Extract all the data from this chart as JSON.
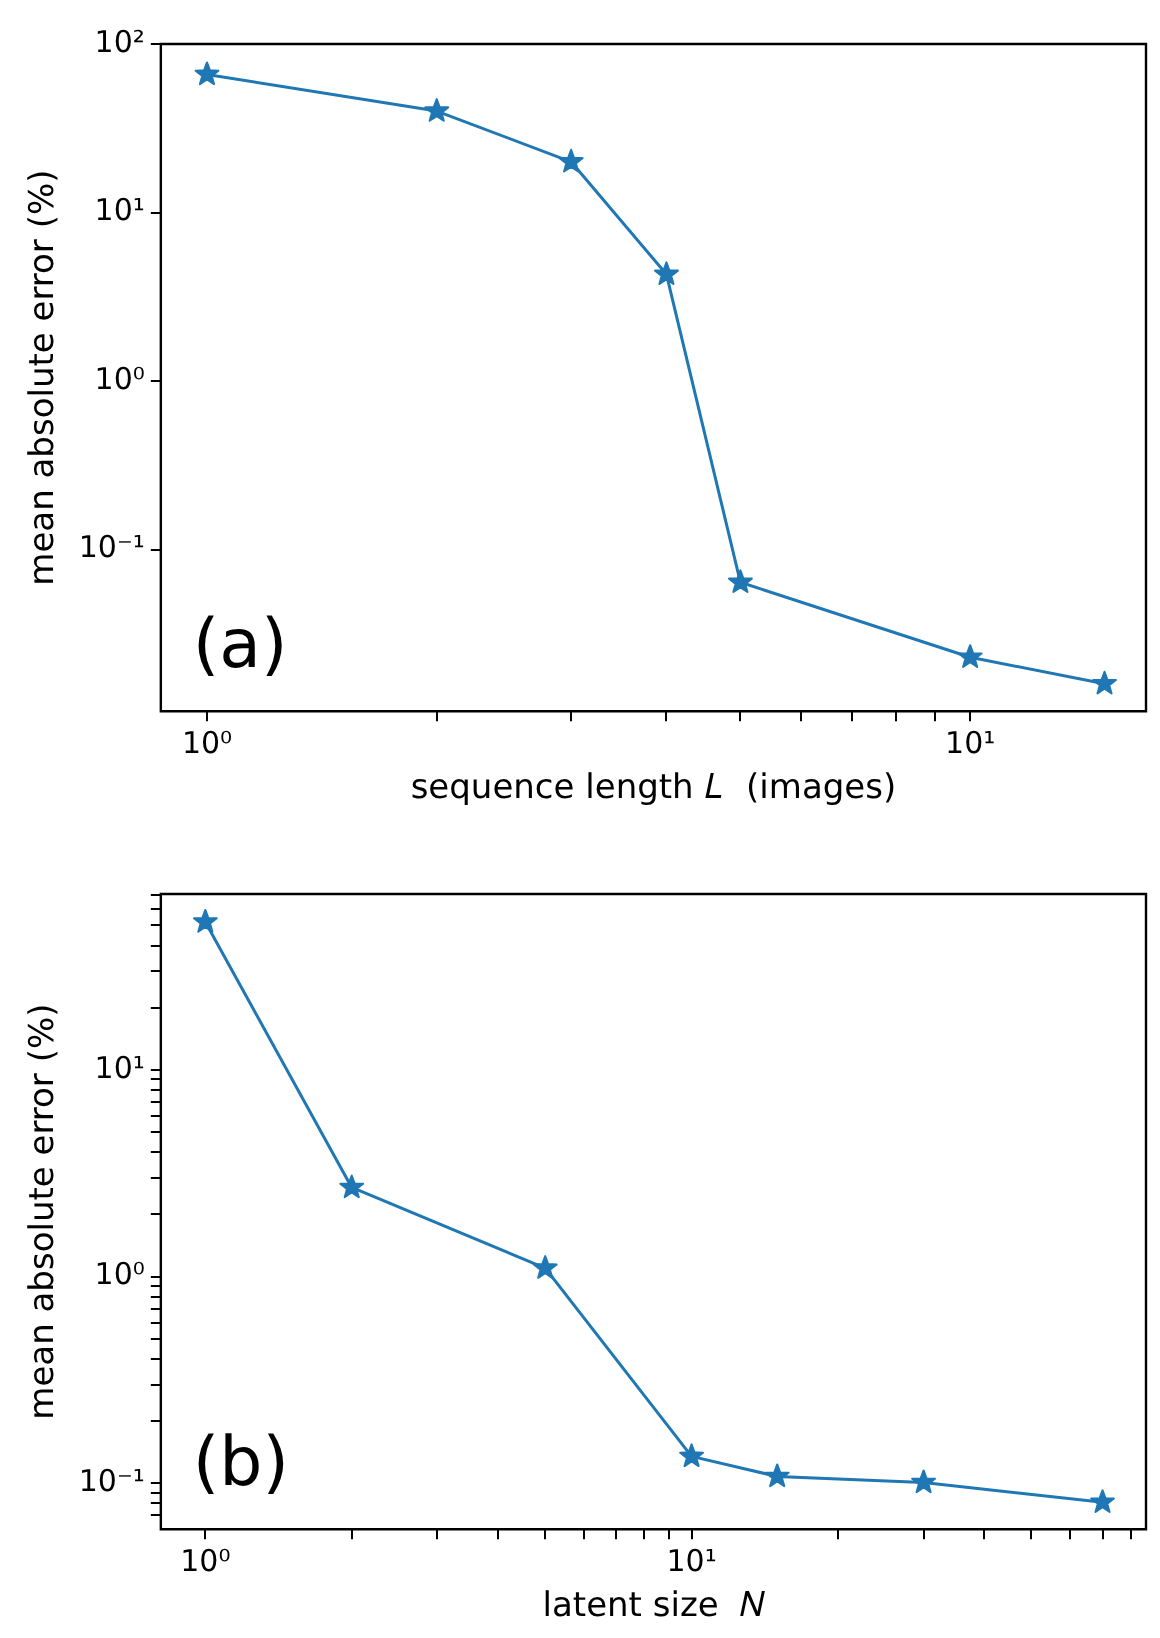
{
  "chart_data": [
    {
      "type": "line",
      "xlabel": "sequence length 𝐿  (images)",
      "ylabel": "mean absolute error (%)",
      "annotations": [
        "(a)"
      ],
      "x": [
        1,
        2,
        3,
        4,
        5,
        10,
        15
      ],
      "series": [
        {
          "color": "#1f77b4",
          "values": [
            66,
            40,
            20,
            4.3,
            0.064,
            0.023,
            0.016
          ]
        }
      ],
      "log": "xy",
      "grid": false,
      "legend": false,
      "marker": "star",
      "line_style": "solid",
      "xlim": [
        0.87,
        17
      ],
      "ylim": [
        0.011,
        100
      ],
      "xticks": [
        {
          "value": 1,
          "label": "10⁰"
        },
        {
          "value": 2,
          "label": null
        },
        {
          "value": 3,
          "label": null
        },
        {
          "value": 4,
          "label": null
        },
        {
          "value": 5,
          "label": null
        },
        {
          "value": 6,
          "label": null
        },
        {
          "value": 7,
          "label": null
        },
        {
          "value": 8,
          "label": null
        },
        {
          "value": 9,
          "label": null
        },
        {
          "value": 10,
          "label": "10¹"
        }
      ],
      "yticks": [
        {
          "value": 0.1,
          "label": "10⁻¹"
        },
        {
          "value": 1,
          "label": "10⁰"
        },
        {
          "value": 10,
          "label": "10¹"
        },
        {
          "value": 100,
          "label": "10²"
        }
      ]
    },
    {
      "type": "line",
      "xlabel": "latent size  𝑁",
      "ylabel": "mean absolute error (%)",
      "annotations": [
        "(b)"
      ],
      "x": [
        1,
        2,
        5,
        10,
        15,
        30,
        70
      ],
      "series": [
        {
          "color": "#1f77b4",
          "values": [
            52,
            2.7,
            1.1,
            0.135,
            0.108,
            0.101,
            0.081
          ]
        }
      ],
      "log": "xy",
      "grid": false,
      "legend": false,
      "marker": "star",
      "line_style": "solid",
      "xlim": [
        0.81,
        86
      ],
      "ylim": [
        0.06,
        71
      ],
      "xticks": [
        {
          "value": 1,
          "label": "10⁰"
        },
        {
          "value": 2,
          "label": null
        },
        {
          "value": 3,
          "label": null
        },
        {
          "value": 4,
          "label": null
        },
        {
          "value": 5,
          "label": null
        },
        {
          "value": 6,
          "label": null
        },
        {
          "value": 7,
          "label": null
        },
        {
          "value": 8,
          "label": null
        },
        {
          "value": 9,
          "label": null
        },
        {
          "value": 10,
          "label": "10¹"
        },
        {
          "value": 20,
          "label": null
        },
        {
          "value": 30,
          "label": null
        },
        {
          "value": 40,
          "label": null
        },
        {
          "value": 50,
          "label": null
        },
        {
          "value": 60,
          "label": null
        },
        {
          "value": 70,
          "label": null
        },
        {
          "value": 80,
          "label": null
        }
      ],
      "yticks": [
        {
          "value": 0.07,
          "label": null
        },
        {
          "value": 0.08,
          "label": null
        },
        {
          "value": 0.09,
          "label": null
        },
        {
          "value": 0.1,
          "label": "10⁻¹"
        },
        {
          "value": 0.2,
          "label": null
        },
        {
          "value": 0.3,
          "label": null
        },
        {
          "value": 0.4,
          "label": null
        },
        {
          "value": 0.5,
          "label": null
        },
        {
          "value": 0.6,
          "label": null
        },
        {
          "value": 0.7,
          "label": null
        },
        {
          "value": 0.8,
          "label": null
        },
        {
          "value": 0.9,
          "label": null
        },
        {
          "value": 1,
          "label": "10⁰"
        },
        {
          "value": 2,
          "label": null
        },
        {
          "value": 3,
          "label": null
        },
        {
          "value": 4,
          "label": null
        },
        {
          "value": 5,
          "label": null
        },
        {
          "value": 6,
          "label": null
        },
        {
          "value": 7,
          "label": null
        },
        {
          "value": 8,
          "label": null
        },
        {
          "value": 9,
          "label": null
        },
        {
          "value": 10,
          "label": "10¹"
        },
        {
          "value": 20,
          "label": null
        },
        {
          "value": 30,
          "label": null
        },
        {
          "value": 40,
          "label": null
        },
        {
          "value": 50,
          "label": null
        },
        {
          "value": 60,
          "label": null
        },
        {
          "value": 70,
          "label": null
        }
      ]
    }
  ]
}
